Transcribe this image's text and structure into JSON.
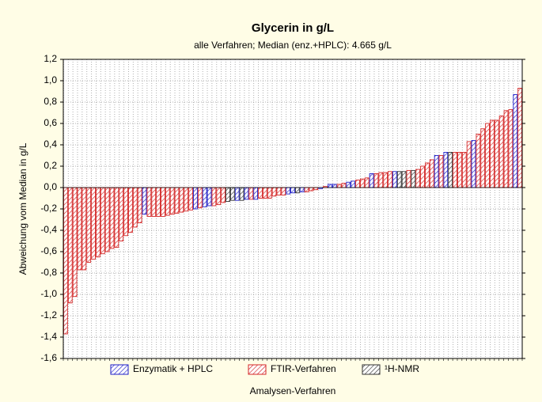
{
  "chart_data": {
    "type": "bar",
    "title": "Glycerin in g/L",
    "subtitle": "alle Verfahren; Median (enz.+HPLC): 4.665 g/L",
    "y_label": "Abweichung vom Median in g/L",
    "x_label": "Amalysen-Verfahren",
    "ylim": [
      -1.6,
      1.2
    ],
    "yticks": [
      {
        "value": -1.6,
        "label": "-1,6"
      },
      {
        "value": -1.4,
        "label": "-1,4"
      },
      {
        "value": -1.2,
        "label": "-1,2"
      },
      {
        "value": -1.0,
        "label": "-1,0"
      },
      {
        "value": -0.8,
        "label": "-0,8"
      },
      {
        "value": -0.6,
        "label": "-0,6"
      },
      {
        "value": -0.4,
        "label": "-0,4"
      },
      {
        "value": -0.2,
        "label": "-0,2"
      },
      {
        "value": 0,
        "label": "0,0"
      },
      {
        "value": 0.2,
        "label": "0,2"
      },
      {
        "value": 0.4,
        "label": "0,4"
      },
      {
        "value": 0.6,
        "label": "0,6"
      },
      {
        "value": 0.8,
        "label": "0,8"
      },
      {
        "value": 1.0,
        "label": "1,0"
      },
      {
        "value": 1.2,
        "label": "1,2"
      }
    ],
    "grid": true,
    "legend": "bottom",
    "series": [
      {
        "name": "Enzymatik + HPLC",
        "color": "#1f1fc8",
        "values": [
          null,
          null,
          null,
          null,
          null,
          null,
          null,
          null,
          null,
          null,
          null,
          null,
          null,
          null,
          null,
          null,
          null,
          -0.25,
          null,
          null,
          null,
          null,
          null,
          null,
          null,
          null,
          null,
          null,
          -0.2,
          null,
          -0.18,
          -0.17,
          null,
          null,
          null,
          null,
          null,
          -0.12,
          null,
          -0.11,
          null,
          -0.11,
          null,
          null,
          null,
          null,
          null,
          null,
          -0.06,
          -0.05,
          null,
          -0.04,
          null,
          null,
          null,
          -0.01,
          null,
          0.03,
          0.03,
          null,
          null,
          0.05,
          0.06,
          null,
          null,
          null,
          0.13,
          null,
          null,
          null,
          null,
          0.15,
          null,
          null,
          null,
          null,
          null,
          null,
          null,
          null,
          0.3,
          null,
          0.33,
          null,
          null,
          null,
          null,
          null,
          0.44,
          null,
          null,
          null,
          null,
          null,
          null,
          null,
          null,
          0.87,
          null
        ]
      },
      {
        "name": "FTIR-Verfahren",
        "color": "#d42626",
        "values": [
          -1.37,
          -1.08,
          -1.02,
          -0.77,
          -0.77,
          -0.7,
          -0.67,
          -0.65,
          -0.62,
          -0.6,
          -0.57,
          -0.56,
          -0.5,
          -0.45,
          -0.42,
          -0.37,
          -0.33,
          null,
          -0.27,
          -0.27,
          -0.27,
          -0.27,
          -0.26,
          -0.25,
          -0.24,
          -0.23,
          -0.22,
          -0.21,
          null,
          -0.19,
          null,
          null,
          -0.17,
          -0.16,
          -0.14,
          null,
          null,
          null,
          null,
          null,
          -0.11,
          null,
          -0.1,
          -0.1,
          -0.1,
          -0.08,
          -0.07,
          -0.07,
          null,
          null,
          null,
          null,
          -0.04,
          -0.03,
          -0.02,
          null,
          0.01,
          null,
          null,
          0.03,
          0.04,
          null,
          null,
          0.07,
          0.08,
          0.09,
          null,
          0.13,
          0.14,
          0.14,
          0.15,
          null,
          null,
          null,
          0.16,
          null,
          0.17,
          0.2,
          0.23,
          0.26,
          null,
          0.3,
          null,
          null,
          0.33,
          0.33,
          0.33,
          0.43,
          null,
          0.5,
          0.55,
          0.6,
          0.63,
          0.63,
          0.67,
          0.72,
          0.73,
          null,
          0.93
        ]
      },
      {
        "name": "¹H-NMR",
        "color": "#333333",
        "values": [
          null,
          null,
          null,
          null,
          null,
          null,
          null,
          null,
          null,
          null,
          null,
          null,
          null,
          null,
          null,
          null,
          null,
          null,
          null,
          null,
          null,
          null,
          null,
          null,
          null,
          null,
          null,
          null,
          null,
          null,
          null,
          null,
          null,
          null,
          null,
          -0.13,
          -0.12,
          null,
          -0.12,
          null,
          null,
          null,
          null,
          null,
          null,
          null,
          null,
          null,
          null,
          null,
          -0.05,
          null,
          null,
          null,
          null,
          null,
          null,
          null,
          null,
          null,
          null,
          null,
          null,
          null,
          null,
          null,
          null,
          null,
          null,
          null,
          null,
          null,
          0.15,
          0.15,
          null,
          0.16,
          null,
          null,
          null,
          null,
          null,
          null,
          null,
          0.33,
          null,
          null,
          null,
          null,
          null,
          null,
          null,
          null,
          null,
          null,
          null,
          null,
          null,
          null,
          null
        ]
      }
    ]
  }
}
